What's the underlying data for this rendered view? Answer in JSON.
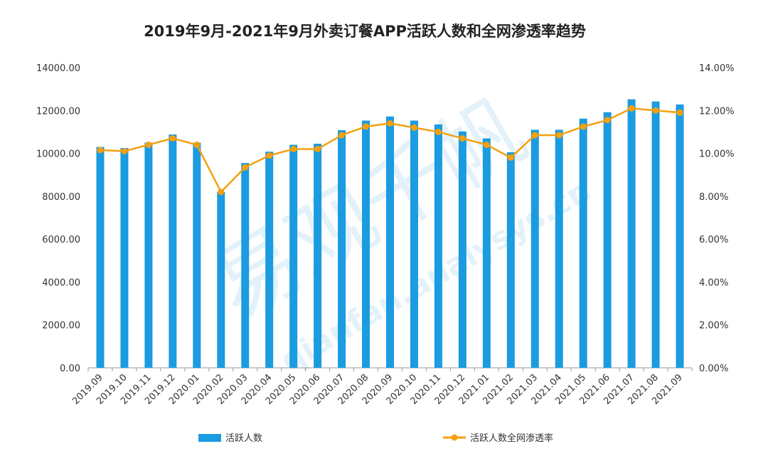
{
  "chart_data": {
    "type": "bar+line",
    "title": "2019年9月-2021年9月外卖订餐APP活跃人数和全网渗透率趋势",
    "categories": [
      "2019.09",
      "2019.10",
      "2019.11",
      "2019.12",
      "2020.01",
      "2020.02",
      "2020.03",
      "2020.04",
      "2020.05",
      "2020.06",
      "2020.07",
      "2020.08",
      "2020.09",
      "2020.10",
      "2020.11",
      "2020.12",
      "2021.01",
      "2021.02",
      "2021.03",
      "2021.04",
      "2021.05",
      "2021.06",
      "2021.07",
      "2021.08",
      "2021.09"
    ],
    "series": [
      {
        "name": "活跃人数",
        "type": "bar",
        "axis": "left",
        "color": "#1b9be0",
        "values": [
          10300,
          10250,
          10500,
          10880,
          10500,
          8200,
          9550,
          10080,
          10400,
          10450,
          11080,
          11530,
          11720,
          11530,
          11350,
          11020,
          10700,
          10050,
          11100,
          11100,
          11620,
          11920,
          12520,
          12420,
          12280
        ]
      },
      {
        "name": "活跃人数全网渗透率",
        "type": "line",
        "axis": "right",
        "color": "#f5a00f",
        "values": [
          10.15,
          10.1,
          10.4,
          10.7,
          10.4,
          8.2,
          9.35,
          9.9,
          10.2,
          10.2,
          10.85,
          11.25,
          11.4,
          11.2,
          11.0,
          10.7,
          10.4,
          9.8,
          10.85,
          10.85,
          11.25,
          11.55,
          12.1,
          12.0,
          11.9
        ]
      }
    ],
    "y_left": {
      "min": 0,
      "max": 14000,
      "step": 2000,
      "tick_labels": [
        "0.00",
        "2000.00",
        "4000.00",
        "6000.00",
        "8000.00",
        "10000.00",
        "12000.00",
        "14000.00"
      ]
    },
    "y_right": {
      "min": 0,
      "max": 14,
      "step": 2,
      "tick_labels": [
        "0.00%",
        "2.00%",
        "4.00%",
        "6.00%",
        "8.00%",
        "10.00%",
        "12.00%",
        "14.00%"
      ]
    },
    "grid": false,
    "legend_position": "bottom"
  },
  "watermark": {
    "cn": "易观千帆",
    "en": "qianfan.analysys.cn"
  }
}
